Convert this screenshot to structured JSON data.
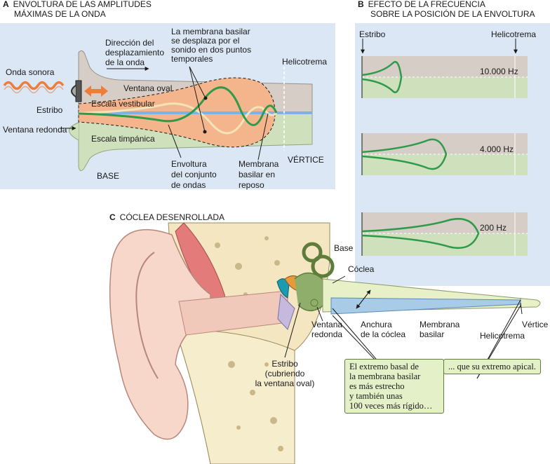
{
  "panel_a": {
    "letter": "A",
    "title_1": "ENVOLTURA DE LAS AMPLITUDES",
    "title_2": "MÁXIMAS DE LA ONDA",
    "labels": {
      "onda_sonora": "Onda sonora",
      "estribo": "Estribo",
      "ventana_redonda": "Ventana redonda",
      "direccion_1": "Dirección del",
      "direccion_2": "desplazamiento",
      "direccion_3": "de la onda",
      "membrana_note_1": "La membrana basilar",
      "membrana_note_2": "se desplaza por el",
      "membrana_note_3": "sonido en dos puntos",
      "membrana_note_4": "temporales",
      "helicotrema": "Helicotrema",
      "ventana_oval": "Ventana oval",
      "escala_vestibular": "Escala vestibular",
      "escala_timpanica": "Escala timpánica",
      "base": "BASE",
      "envoltura_1": "Envoltura",
      "envoltura_2": "del conjunto",
      "envoltura_3": "de ondas",
      "membrana_reposo_1": "Membrana",
      "membrana_reposo_2": "basilar en",
      "membrana_reposo_3": "reposo",
      "vertice": "VÉRTICE"
    }
  },
  "panel_b": {
    "letter": "B",
    "title_1": "EFECTO DE LA FRECUENCIA",
    "title_2": "SOBRE LA POSICIÓN DE LA ENVOLTURA",
    "estribo": "Estribo",
    "helicotrema": "Helicotrema",
    "frequencies": [
      "10.000 Hz",
      "4.000 Hz",
      "200 Hz"
    ]
  },
  "panel_c": {
    "letter": "C",
    "title": "CÓCLEA DESENROLLADA",
    "labels": {
      "base": "Base",
      "coclea": "Cóclea",
      "ventana_redonda_1": "Ventana",
      "ventana_redonda_2": "redonda",
      "anchura_1": "Anchura",
      "anchura_2": "de la cóclea",
      "membrana_1": "Membrana",
      "membrana_2": "basilar",
      "vertice": "Vértice",
      "helicotrema": "Helicotrema",
      "estribo_1": "Estribo",
      "estribo_2": "(cubriendo",
      "estribo_3": "la ventana oval)"
    },
    "callout_left": [
      "El extremo basal de",
      "la membrana basilar",
      "es más estrecho",
      "y también unas",
      "100 veces más rígido…"
    ],
    "callout_right": "... que su extremo apical."
  },
  "colors": {
    "panel_bg": "#dbe7f4",
    "scala_vestibuli": "#d6cdc6",
    "scala_tympani": "#cfe0bd",
    "envelope": "#f4b58c",
    "wave_green": "#2e9a4a",
    "wave_cream": "#f5e3b8",
    "membrane_blue": "#7fb2e0",
    "sound_orange": "#ee7d3c",
    "callout_bg": "#e3f0c8"
  }
}
